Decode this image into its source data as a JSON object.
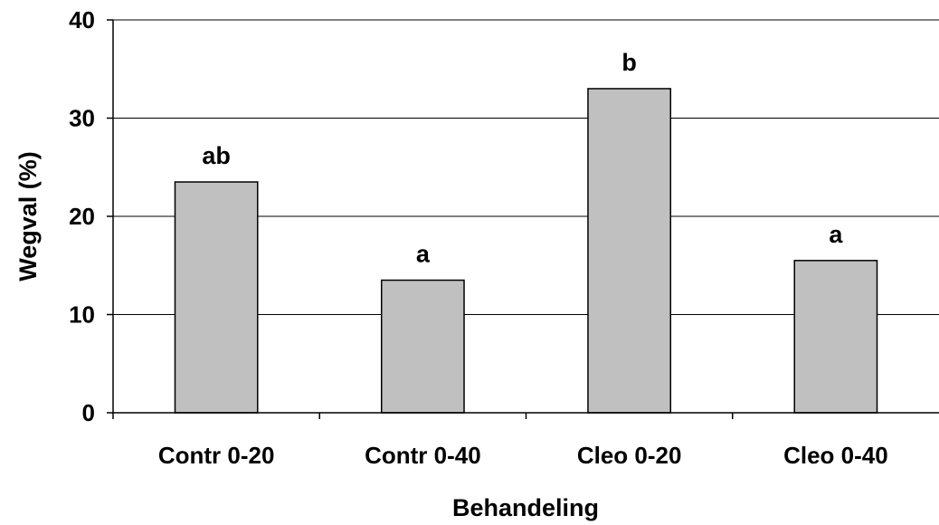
{
  "chart_data": {
    "type": "bar",
    "title": "",
    "xlabel": "Behandeling",
    "ylabel": "Wegval (%)",
    "categories": [
      "Contr 0-20",
      "Contr 0-40",
      "Cleo 0-20",
      "Cleo 0-40"
    ],
    "values": [
      23.5,
      13.5,
      33.0,
      15.5
    ],
    "bar_labels": [
      "ab",
      "a",
      "b",
      "a"
    ],
    "ylim": [
      0,
      40
    ],
    "yticks": [
      "0",
      "10",
      "20",
      "30",
      "40"
    ],
    "grid": true,
    "legend": "none",
    "colors": {
      "bar_fill": "#c0c0c0",
      "bar_stroke": "#000000",
      "grid": "#000000"
    }
  }
}
